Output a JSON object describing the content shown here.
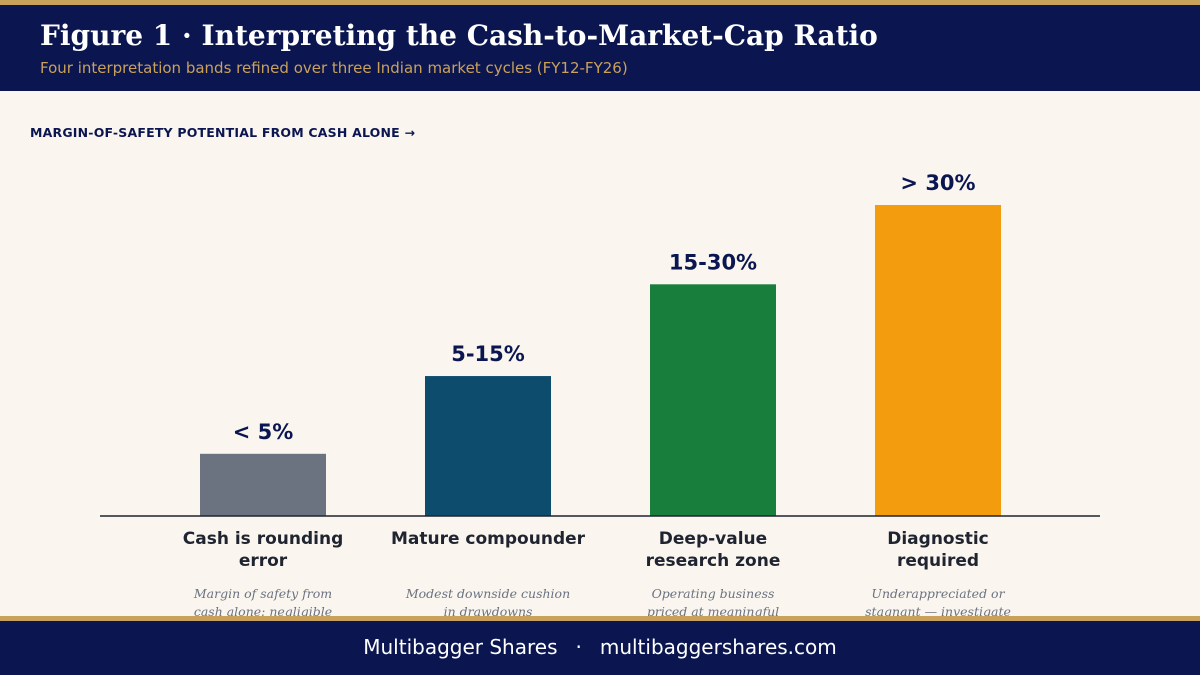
{
  "header": {
    "title": "Figure 1  ·  Interpreting the Cash-to-Market-Cap Ratio",
    "subtitle": "Four interpretation bands refined over three Indian market cycles (FY12-FY26)"
  },
  "colors": {
    "navy": "#0b1651",
    "gold": "#c9a15a",
    "background": "#faf6ef"
  },
  "chart_data": {
    "type": "bar",
    "axis_caption": "MARGIN-OF-SAFETY POTENTIAL FROM CASH ALONE  →",
    "grid": false,
    "ylim": [
      0,
      1
    ],
    "categories": [
      {
        "label": "Cash is rounding error",
        "band": "< 5%",
        "note": "Margin of safety from cash alone: negligible",
        "value": 0.2,
        "color": "#6b7280"
      },
      {
        "label": "Mature compounder",
        "band": "5-15%",
        "note": "Modest downside cushion in drawdowns",
        "value": 0.45,
        "color": "#0e4c6e"
      },
      {
        "label": "Deep-value research zone",
        "band": "15-30%",
        "note": "Operating business priced at meaningful",
        "value": 0.745,
        "color": "#177e3c"
      },
      {
        "label": "Diagnostic required",
        "band": "> 30%",
        "note": "Underappreciated or stagnant — investigate",
        "value": 1.0,
        "color": "#f39c0e"
      }
    ]
  },
  "footer": {
    "brand": "Multibagger Shares",
    "separator": "·",
    "url": "multibaggershares.com"
  }
}
